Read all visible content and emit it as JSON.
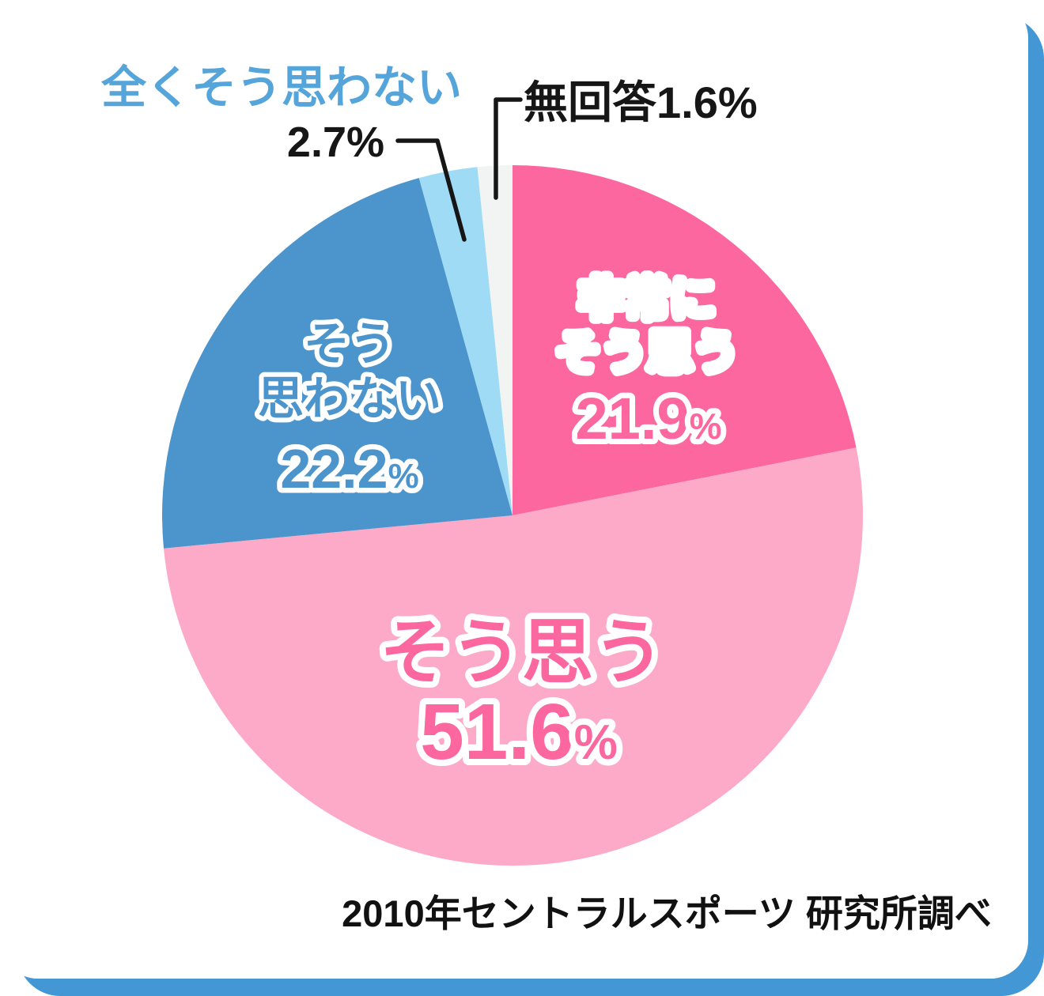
{
  "card": {
    "fill": "#ffffff",
    "accent_color": "#4397d4"
  },
  "callouts": {
    "strongly_disagree": {
      "label": "全くそう思わない",
      "label_color": "#55a4da",
      "value": "2.7%"
    },
    "no_answer": {
      "label": "無回答1.6%"
    }
  },
  "chart_data": {
    "type": "pie",
    "unit": "%",
    "percent_sign": "%",
    "start_angle_deg": -90,
    "direction": "clockwise",
    "total": 100,
    "source_note": "2010年セントラルスポーツ 研究所調べ",
    "slices": [
      {
        "label": "非常にそう思う",
        "label_lines": [
          "非常に",
          "そう思う"
        ],
        "value": 21.9,
        "value_text": "21.9",
        "color": "#fb679e",
        "label_fill": "#ffffff",
        "number_fill": "#fb679e"
      },
      {
        "label": "そう思う",
        "label_lines": [
          "そう思う"
        ],
        "value": 51.6,
        "value_text": "51.6",
        "color": "#fcaac8",
        "label_fill": "#fb679e",
        "number_fill": "#fb679e"
      },
      {
        "label": "そう思わない",
        "label_lines": [
          "そう",
          "思わない"
        ],
        "value": 22.2,
        "value_text": "22.2",
        "color": "#4b95cc",
        "label_fill": "#4b95cc",
        "number_fill": "#4b95cc"
      },
      {
        "label": "全くそう思わない",
        "value": 2.7,
        "value_text": "2.7",
        "color": "#9fdbf5"
      },
      {
        "label": "無回答",
        "value": 1.6,
        "value_text": "1.6",
        "color": "#f2f4f4"
      }
    ]
  }
}
